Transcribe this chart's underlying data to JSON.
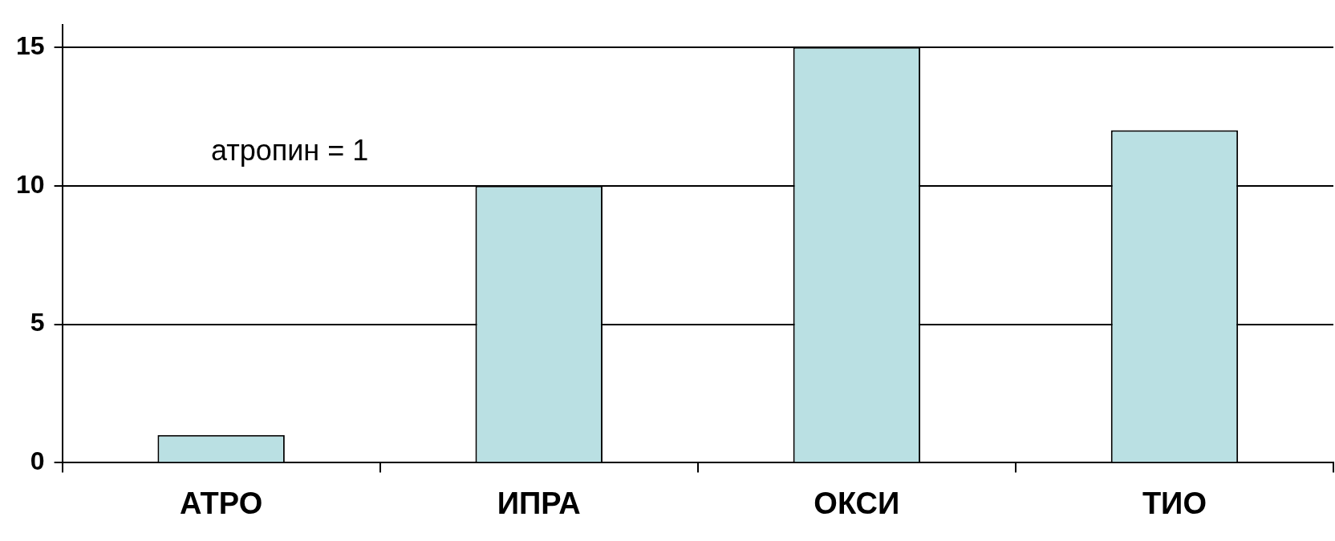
{
  "chart_data": {
    "type": "bar",
    "categories": [
      "АТРО",
      "ИПРА",
      "ОКСИ",
      "ТИО"
    ],
    "values": [
      1,
      10,
      15,
      12
    ],
    "color": "#bae0e3",
    "ylim": [
      0,
      15.8
    ],
    "yticks": [
      0,
      5,
      10,
      15
    ],
    "grid": "y",
    "legend": false,
    "annotations": [
      "атропин = 1"
    ]
  }
}
